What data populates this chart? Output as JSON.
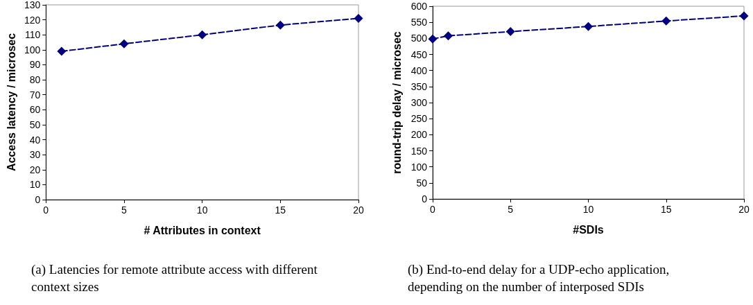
{
  "chart_data": [
    {
      "type": "line",
      "xlabel": "# Attributes in context",
      "ylabel": "Access latency / microsec",
      "x": [
        1,
        5,
        10,
        15,
        20
      ],
      "series": [
        {
          "color": "#000080",
          "values": [
            99,
            104,
            110,
            116.5,
            121
          ]
        }
      ],
      "xlim": [
        0,
        20
      ],
      "xticks": [
        0,
        5,
        10,
        15,
        20
      ],
      "ylim": [
        0,
        130
      ],
      "yticks": [
        0,
        10,
        20,
        30,
        40,
        50,
        60,
        70,
        80,
        90,
        100,
        110,
        120,
        130
      ],
      "grid": false,
      "marker": "diamond",
      "line_style": "dashed",
      "annotations": [
        "(a) Latencies for remote attribute access with different context sizes"
      ]
    },
    {
      "type": "line",
      "xlabel": "#SDIs",
      "ylabel": "round-trip delay / microsec",
      "x": [
        0,
        1,
        5,
        10,
        15,
        20
      ],
      "series": [
        {
          "color": "#000080",
          "values": [
            498,
            508,
            521,
            537,
            554,
            570
          ]
        }
      ],
      "xlim": [
        0,
        20
      ],
      "xticks": [
        0,
        5,
        10,
        15,
        20
      ],
      "ylim": [
        0,
        600
      ],
      "yticks": [
        0,
        50,
        100,
        150,
        200,
        250,
        300,
        350,
        400,
        450,
        500,
        550,
        600
      ],
      "grid": false,
      "marker": "diamond",
      "line_style": "dashed",
      "annotations": [
        "(b) End-to-end delay for a UDP-echo application, depending on the number of interposed SDIs"
      ]
    }
  ]
}
